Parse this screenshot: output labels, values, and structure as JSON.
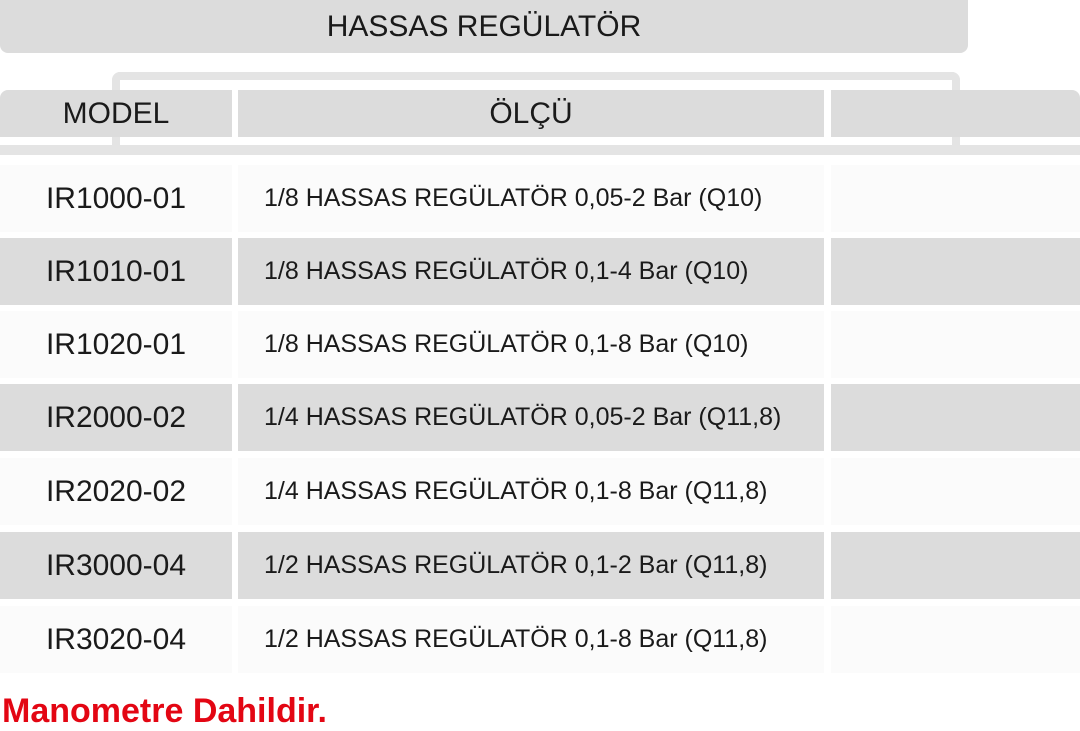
{
  "title": "HASSAS REGÜLATÖR",
  "headers": {
    "model": "MODEL",
    "size": "ÖLÇÜ",
    "extra": ""
  },
  "rows": [
    {
      "model": "IR1000-01",
      "desc": "1/8 HASSAS REGÜLATÖR 0,05-2 Bar (Q10)"
    },
    {
      "model": "IR1010-01",
      "desc": "1/8 HASSAS REGÜLATÖR 0,1-4 Bar (Q10)"
    },
    {
      "model": "IR1020-01",
      "desc": "1/8 HASSAS REGÜLATÖR 0,1-8 Bar (Q10)"
    },
    {
      "model": "IR2000-02",
      "desc": "1/4 HASSAS REGÜLATÖR 0,05-2 Bar (Q11,8)"
    },
    {
      "model": "IR2020-02",
      "desc": "1/4 HASSAS REGÜLATÖR 0,1-8 Bar (Q11,8)"
    },
    {
      "model": "IR3000-04",
      "desc": "1/2 HASSAS REGÜLATÖR 0,1-2 Bar (Q11,8)"
    },
    {
      "model": "IR3020-04",
      "desc": "1/2 HASSAS REGÜLATÖR 0,1-8 Bar (Q11,8)"
    }
  ],
  "note": "Manometre Dahildir.",
  "colors": {
    "header_gray": "#dcdcdc",
    "note_red": "#e30613"
  }
}
